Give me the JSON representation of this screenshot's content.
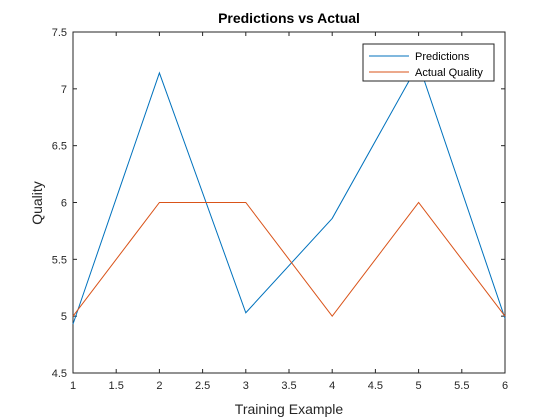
{
  "chart_data": {
    "type": "line",
    "title": "Predictions vs Actual",
    "xlabel": "Training Example",
    "ylabel": "Quality",
    "xlim": [
      1,
      6
    ],
    "ylim": [
      4.5,
      7.5
    ],
    "xticks": [
      "1",
      "1.5",
      "2",
      "2.5",
      "3",
      "3.5",
      "4",
      "4.5",
      "5",
      "5.5",
      "6"
    ],
    "yticks": [
      "4.5",
      "5",
      "5.5",
      "6",
      "6.5",
      "7",
      "7.5"
    ],
    "grid": false,
    "legend_position": "top-right",
    "x": [
      1,
      2,
      3,
      4,
      5,
      6
    ],
    "series": [
      {
        "name": "Predictions",
        "color": "#0072bd",
        "values": [
          4.93,
          7.14,
          5.03,
          5.86,
          7.22,
          4.98
        ]
      },
      {
        "name": "Actual Quality",
        "color": "#d95319",
        "values": [
          5.0,
          6.0,
          6.0,
          5.0,
          6.0,
          5.0
        ]
      }
    ]
  }
}
